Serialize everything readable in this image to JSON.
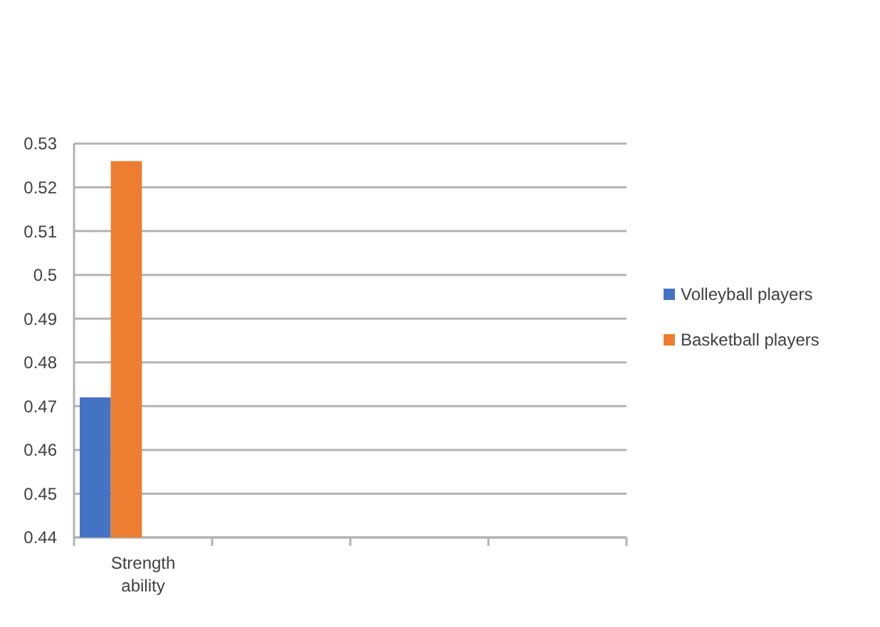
{
  "chart_data": {
    "type": "bar",
    "categories": [
      "Strength ability",
      null,
      null,
      null
    ],
    "series": [
      {
        "name": "Volleyball players",
        "color": "#4472c4",
        "values": [
          0.472,
          null,
          null,
          null
        ]
      },
      {
        "name": "Basketball players",
        "color": "#ed7d31",
        "values": [
          0.526,
          null,
          null,
          null
        ]
      }
    ],
    "ylim": [
      0.44,
      0.53
    ],
    "yticks": [
      0.44,
      0.45,
      0.46,
      0.47,
      0.48,
      0.49,
      0.5,
      0.51,
      0.52,
      0.53
    ],
    "grid": "y",
    "legend": "right"
  }
}
